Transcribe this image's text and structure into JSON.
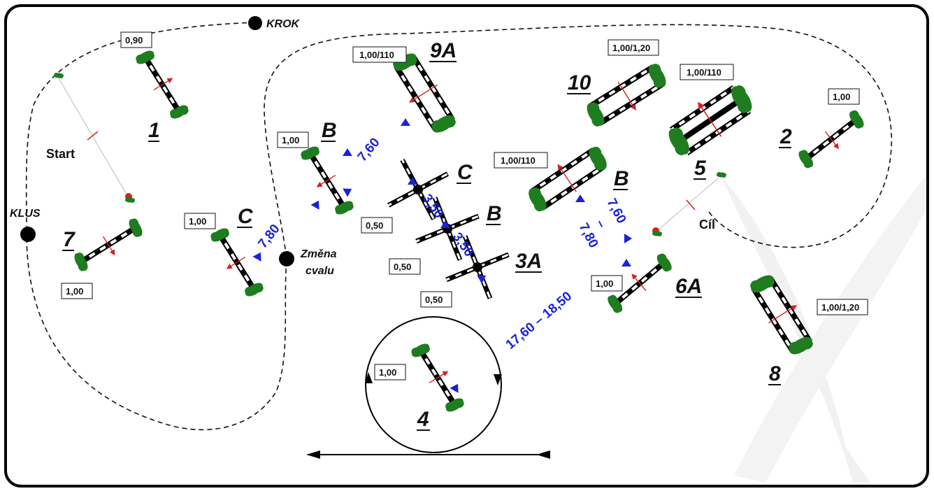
{
  "course": {
    "gait_labels": {
      "krok": "KROK",
      "klus": "KLUS",
      "change": [
        "Změna",
        "cvalu"
      ]
    },
    "start_label": "Start",
    "finish_label": "Cíl",
    "obstacles": [
      {
        "id": "1",
        "height": "0,90"
      },
      {
        "id": "2",
        "height": "1,00"
      },
      {
        "id": "3A",
        "height": "0,50"
      },
      {
        "id": "B",
        "height": "0,50"
      },
      {
        "id": "C",
        "height": "0,50"
      },
      {
        "id": "4",
        "height": "1,00"
      },
      {
        "id": "5",
        "height": "1,00/110"
      },
      {
        "id": "6A",
        "height": "1,00"
      },
      {
        "id": "B",
        "height": "1,00/110"
      },
      {
        "id": "7",
        "height": "1,00"
      },
      {
        "id": "C",
        "height": "1,00"
      },
      {
        "id": "8",
        "height": "1,00/1,20"
      },
      {
        "id": "9A",
        "height": "1,00/110"
      },
      {
        "id": "B",
        "height": "1,00"
      },
      {
        "id": "10",
        "height": "1,00/1,20"
      }
    ],
    "distances": {
      "d_9a_b": "7,60",
      "d_b_c": "7,80",
      "d_3_1": "3,50",
      "d_3_2": "3,50",
      "d_6_1": "7,60",
      "d_6_dash": "–",
      "d_6_2": "7,80",
      "d_4_6": "17,60 – 18,50"
    }
  },
  "colors": {
    "ink": "#111111",
    "distance_blue": "#1a23d6",
    "flag_green": "#1e7d1e",
    "flag_red": "#d42020"
  }
}
